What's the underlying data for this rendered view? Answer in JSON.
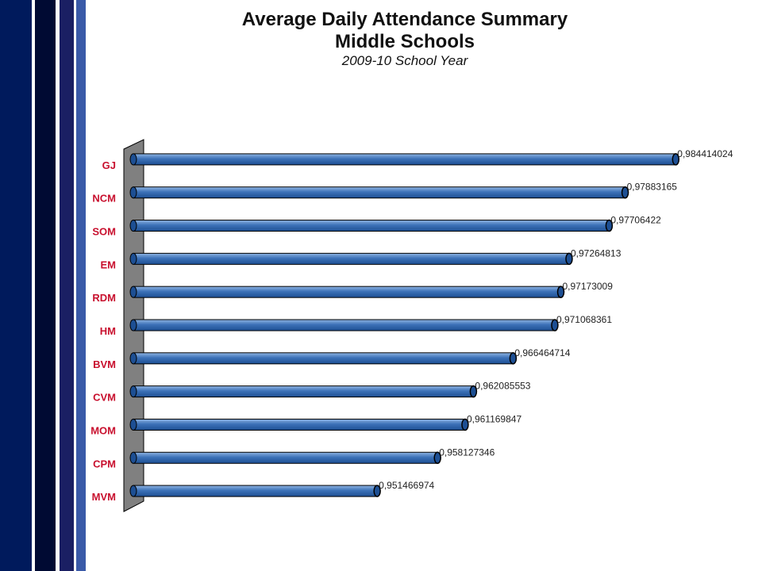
{
  "theme": {
    "stripe_colors": [
      "#001a5c",
      "#ffffff",
      "#000a33",
      "#ffffff",
      "#1a1f63",
      "#ffffff",
      "#3a5aa8"
    ],
    "bar_color": "#3d72b8",
    "bar_dark": "#1d4f93",
    "bar_light": "#8fb4e2",
    "wall_color": "#808080",
    "label_color": "#c8102e"
  },
  "chart_data": {
    "type": "bar",
    "orientation": "horizontal",
    "title": "Average Daily Attendance Summary",
    "subtitle": "Middle Schools",
    "subtitle2": "2009-10 School Year",
    "categories": [
      "GJ",
      "NCM",
      "SOM",
      "EM",
      "RDM",
      "HM",
      "BVM",
      "CVM",
      "MOM",
      "CPM",
      "MVM"
    ],
    "values": [
      0.984414024,
      0.97883165,
      0.97706422,
      0.97264813,
      0.97173009,
      0.971068361,
      0.966464714,
      0.962085553,
      0.961169847,
      0.958127346,
      0.951466974
    ],
    "value_labels": [
      "0,984414024",
      "0,97883165",
      "0,97706422",
      "0,97264813",
      "0,97173009",
      "0,971068361",
      "0,966464714",
      "0,962085553",
      "0,961169847",
      "0,958127346",
      "0,951466974"
    ],
    "xlim": [
      0.925,
      0.985
    ],
    "grid": false,
    "legend": "none"
  }
}
